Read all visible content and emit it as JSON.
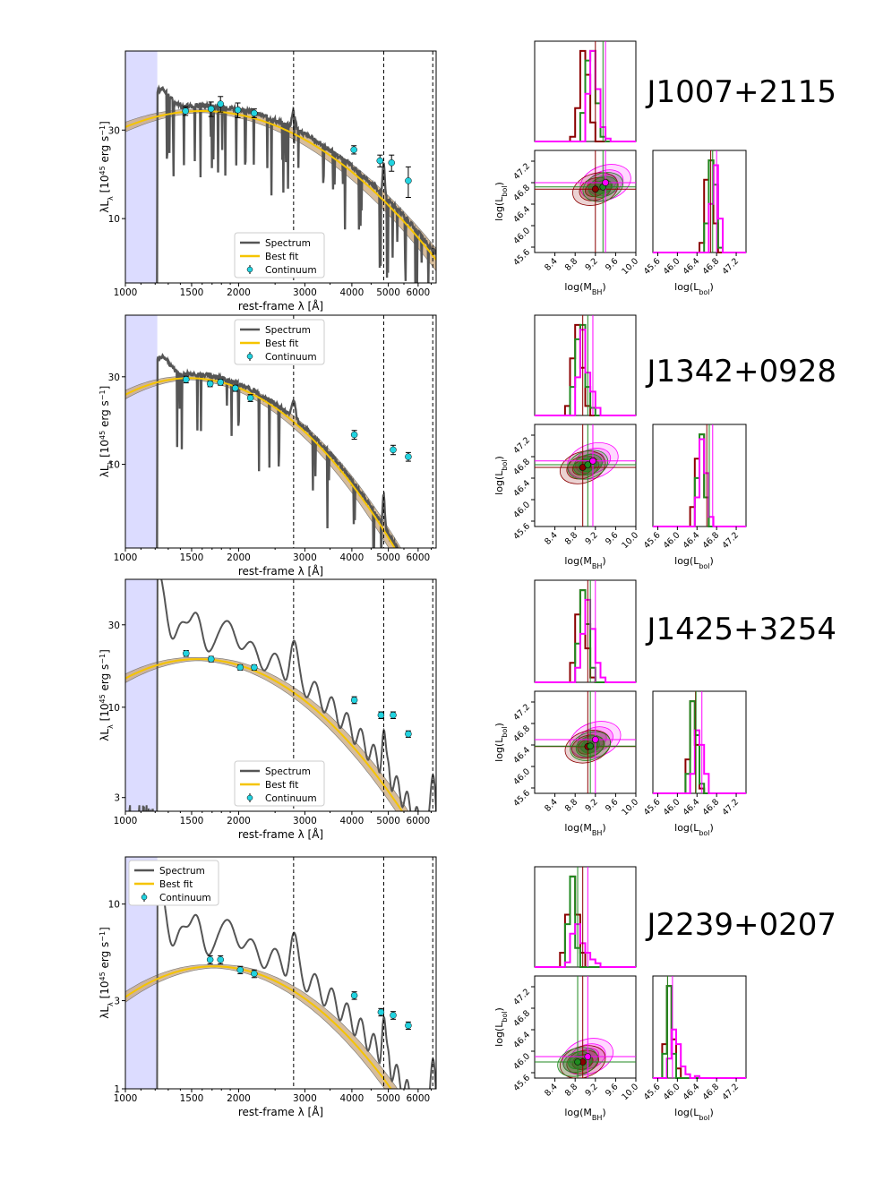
{
  "figure": {
    "x_axis_label": "rest-frame λ [Å]",
    "y_axis_label_prefix": "λL",
    "y_axis_label_sub": "λ",
    "y_axis_label_unit": " [10",
    "y_axis_label_exp": "45",
    "y_axis_label_tail": " erg s",
    "y_axis_label_tail_exp": "−1",
    "y_axis_label_close": "]",
    "x_ticks": [
      "1000",
      "1500",
      "2000",
      "3000",
      "4000",
      "5000",
      "6000"
    ],
    "corner_x_label_mbh": "log(M",
    "corner_x_label_mbh_sub": "BH",
    "corner_x_label_lbol": "log(L",
    "corner_x_label_lbol_sub": "bol",
    "corner_y_label": "log(L",
    "corner_y_label_sub": "bol",
    "mbh_ticks": [
      "8.4",
      "8.8",
      "9.2",
      "9.6",
      "10.0"
    ],
    "lbol_ticks": [
      "45.6",
      "46.0",
      "46.4",
      "46.8",
      "47.2"
    ],
    "legend": {
      "spectrum": "Spectrum",
      "best_fit": "Best fit",
      "continuum": "Continuum"
    }
  },
  "colors": {
    "spectrum": "#555555",
    "best_fit": "#f5c400",
    "band": "#c8a57a",
    "continuum": "#22d3e0",
    "lyman_shade": "#dcdcff",
    "corner_red": "#8b0000",
    "corner_green": "#1f8a1f",
    "corner_magenta": "#ff00ff"
  },
  "chart_data": [
    {
      "type": "line",
      "object": "J1007+2115",
      "xscale": "log",
      "yscale": "log",
      "xlim": [
        1000,
        6700
      ],
      "ylim": [
        4.5,
        80
      ],
      "y_ticks": [
        10,
        30
      ],
      "vlines": [
        2800,
        4861,
        6563
      ],
      "shade_x": [
        1000,
        1216
      ],
      "legend_loc": "bottom-center",
      "best_fit": {
        "peak_x": 1600,
        "peak_y": 38,
        "curvature": 0.9
      },
      "continuum": {
        "x": [
          1445,
          1690,
          1790,
          1990,
          2200,
          4050,
          4750,
          5100,
          5650
        ],
        "y": [
          38,
          39,
          41.5,
          38.5,
          37,
          23.5,
          20.5,
          20,
          16
        ],
        "err": [
          2,
          3.5,
          4,
          3.5,
          2,
          1.2,
          1.5,
          2,
          3
        ]
      },
      "spectrum_shape": {
        "level": 1.07,
        "absorption": "strong"
      }
    },
    {
      "type": "line",
      "object": "J1342+0928",
      "xscale": "log",
      "yscale": "log",
      "xlim": [
        1000,
        6700
      ],
      "ylim": [
        3.5,
        65
      ],
      "y_ticks": [
        10,
        30
      ],
      "vlines": [
        2800,
        4861,
        6563
      ],
      "shade_x": [
        1000,
        1216
      ],
      "legend_loc": "top-center",
      "best_fit": {
        "peak_x": 1480,
        "peak_y": 29.5,
        "curvature": 1.35
      },
      "continuum": {
        "x": [
          1450,
          1680,
          1790,
          1960,
          2150,
          4060,
          5150,
          5650
        ],
        "y": [
          29,
          27.5,
          28,
          26,
          23,
          14.5,
          12,
          11
        ],
        "err": [
          1.2,
          1,
          1,
          1,
          1,
          0.8,
          0.7,
          0.6
        ]
      },
      "spectrum_shape": {
        "level": 1.05,
        "absorption": "medium"
      }
    },
    {
      "type": "line",
      "object": "J1425+3254",
      "xscale": "log",
      "yscale": "log",
      "xlim": [
        1000,
        6700
      ],
      "ylim": [
        2.5,
        55
      ],
      "y_ticks": [
        3,
        10,
        30
      ],
      "vlines": [
        2800,
        4861,
        6563
      ],
      "shade_x": [
        1000,
        1216
      ],
      "legend_loc": "bottom-center",
      "best_fit": {
        "peak_x": 1560,
        "peak_y": 19,
        "curvature": 1.3
      },
      "continuum": {
        "x": [
          1450,
          1690,
          2020,
          2200,
          4060,
          4780,
          5150,
          5650
        ],
        "y": [
          20.5,
          19,
          17,
          17,
          11,
          9,
          9,
          7
        ],
        "err": [
          0.8,
          0.7,
          0.6,
          0.6,
          0.5,
          0.4,
          0.4,
          0.3
        ]
      },
      "spectrum_shape": {
        "level": 1.25,
        "absorption": "none"
      }
    },
    {
      "type": "line",
      "object": "J2239+0207",
      "xscale": "log",
      "yscale": "log",
      "xlim": [
        1000,
        6700
      ],
      "ylim": [
        1,
        18
      ],
      "y_ticks": [
        1,
        3,
        10
      ],
      "vlines": [
        2800,
        4861,
        6563
      ],
      "shade_x": [
        1000,
        1216
      ],
      "legend_loc": "top-left",
      "best_fit": {
        "peak_x": 1720,
        "peak_y": 4.6,
        "curvature": 1.3
      },
      "continuum": {
        "x": [
          1680,
          1790,
          2020,
          2200,
          4060,
          4780,
          5150,
          5650
        ],
        "y": [
          5.0,
          5.0,
          4.4,
          4.2,
          3.2,
          2.6,
          2.5,
          2.2
        ],
        "err": [
          0.25,
          0.25,
          0.2,
          0.2,
          0.15,
          0.12,
          0.12,
          0.1
        ]
      },
      "spectrum_shape": {
        "level": 1.3,
        "absorption": "none"
      }
    }
  ],
  "corner_data": [
    {
      "object": "J1007+2115",
      "mbh_lim": [
        8.0,
        10.0
      ],
      "lbol_lim": [
        45.5,
        47.4
      ],
      "red": {
        "mbh": 9.2,
        "lbol": 46.68,
        "mbh_hist": [
          0,
          0,
          0,
          0,
          0,
          0,
          0,
          0.05,
          0.35,
          0.95,
          0.7,
          0.2,
          0,
          0,
          0,
          0,
          0,
          0,
          0,
          0
        ],
        "lbol_hist": [
          0,
          0,
          0,
          0,
          0,
          0,
          0,
          0,
          0,
          0,
          0.1,
          0.75,
          0.95,
          0.3,
          0,
          0,
          0,
          0,
          0,
          0
        ]
      },
      "green": {
        "mbh": 9.35,
        "lbol": 46.72,
        "mbh_hist": [
          0,
          0,
          0,
          0,
          0,
          0,
          0,
          0,
          0,
          0.3,
          0.85,
          0.95,
          0.4,
          0.05,
          0,
          0,
          0,
          0,
          0,
          0
        ],
        "lbol_hist": [
          0,
          0,
          0,
          0,
          0,
          0,
          0,
          0,
          0,
          0,
          0,
          0.3,
          0.95,
          0.7,
          0.05,
          0,
          0,
          0,
          0,
          0
        ]
      },
      "magenta": {
        "mbh": 9.4,
        "lbol": 46.8,
        "mbh_hist": [
          0,
          0,
          0,
          0,
          0,
          0,
          0,
          0,
          0,
          0,
          0.5,
          0.95,
          0.55,
          0.15,
          0.03,
          0,
          0,
          0,
          0,
          0
        ],
        "lbol_hist": [
          0,
          0,
          0,
          0,
          0,
          0,
          0,
          0,
          0,
          0,
          0,
          0,
          0.5,
          0.9,
          0.35,
          0,
          0,
          0,
          0,
          0
        ]
      }
    },
    {
      "object": "J1342+0928",
      "mbh_lim": [
        8.0,
        10.0
      ],
      "lbol_lim": [
        45.5,
        47.4
      ],
      "red": {
        "mbh": 8.95,
        "lbol": 46.6,
        "mbh_hist": [
          0,
          0,
          0,
          0,
          0,
          0,
          0.1,
          0.6,
          0.95,
          0.5,
          0.1,
          0,
          0,
          0,
          0,
          0,
          0,
          0,
          0,
          0
        ],
        "lbol_hist": [
          0,
          0,
          0,
          0,
          0,
          0,
          0,
          0,
          0.2,
          0.7,
          0.95,
          0.3,
          0,
          0,
          0,
          0,
          0,
          0,
          0,
          0
        ]
      },
      "green": {
        "mbh": 9.05,
        "lbol": 46.65,
        "mbh_hist": [
          0,
          0,
          0,
          0,
          0,
          0,
          0,
          0.3,
          0.8,
          0.95,
          0.3,
          0.08,
          0,
          0,
          0,
          0,
          0,
          0,
          0,
          0
        ],
        "lbol_hist": [
          0,
          0,
          0,
          0,
          0,
          0,
          0,
          0,
          0,
          0.5,
          0.95,
          0.3,
          0,
          0,
          0,
          0,
          0,
          0,
          0,
          0
        ]
      },
      "magenta": {
        "mbh": 9.15,
        "lbol": 46.72,
        "mbh_hist": [
          0,
          0,
          0,
          0,
          0,
          0,
          0,
          0,
          0.4,
          0.9,
          0.45,
          0.25,
          0.08,
          0,
          0,
          0,
          0,
          0,
          0,
          0
        ],
        "lbol_hist": [
          0,
          0,
          0,
          0,
          0,
          0,
          0,
          0,
          0,
          0.3,
          0.9,
          0.55,
          0.1,
          0,
          0,
          0,
          0,
          0,
          0,
          0
        ]
      }
    },
    {
      "object": "J1425+3254",
      "mbh_lim": [
        8.0,
        10.0
      ],
      "lbol_lim": [
        45.5,
        47.4
      ],
      "red": {
        "mbh": 9.05,
        "lbol": 46.37,
        "mbh_hist": [
          0,
          0,
          0,
          0,
          0,
          0,
          0,
          0.2,
          0.7,
          0.95,
          0.35,
          0.05,
          0,
          0,
          0,
          0,
          0,
          0,
          0,
          0
        ],
        "lbol_hist": [
          0,
          0,
          0,
          0,
          0,
          0,
          0,
          0.35,
          0.95,
          0.5,
          0.05,
          0,
          0,
          0,
          0,
          0,
          0,
          0,
          0,
          0
        ]
      },
      "green": {
        "mbh": 9.1,
        "lbol": 46.38,
        "mbh_hist": [
          0,
          0,
          0,
          0,
          0,
          0,
          0,
          0,
          0.4,
          0.95,
          0.6,
          0.15,
          0,
          0,
          0,
          0,
          0,
          0,
          0,
          0
        ],
        "lbol_hist": [
          0,
          0,
          0,
          0,
          0,
          0,
          0,
          0.2,
          0.95,
          0.6,
          0.1,
          0,
          0,
          0,
          0,
          0,
          0,
          0,
          0,
          0
        ]
      },
      "magenta": {
        "mbh": 9.2,
        "lbol": 46.5,
        "mbh_hist": [
          0,
          0,
          0,
          0,
          0,
          0,
          0,
          0,
          0.15,
          0.5,
          0.85,
          0.55,
          0.2,
          0.05,
          0,
          0,
          0,
          0,
          0,
          0
        ],
        "lbol_hist": [
          0,
          0,
          0,
          0,
          0,
          0,
          0,
          0,
          0.2,
          0.65,
          0.5,
          0.2,
          0,
          0,
          0,
          0,
          0,
          0,
          0,
          0
        ]
      }
    },
    {
      "object": "J2239+0207",
      "mbh_lim": [
        8.0,
        10.0
      ],
      "lbol_lim": [
        45.5,
        47.4
      ],
      "red": {
        "mbh": 8.95,
        "lbol": 45.8,
        "mbh_hist": [
          0,
          0,
          0,
          0,
          0,
          0.15,
          0.55,
          0.95,
          0.55,
          0.15,
          0,
          0,
          0,
          0,
          0,
          0,
          0,
          0,
          0,
          0
        ],
        "lbol_hist": [
          0,
          0,
          0.35,
          0.95,
          0.4,
          0.1,
          0,
          0,
          0,
          0,
          0,
          0,
          0,
          0,
          0,
          0,
          0,
          0,
          0,
          0
        ]
      },
      "green": {
        "mbh": 8.85,
        "lbol": 45.8,
        "mbh_hist": [
          0,
          0,
          0,
          0,
          0,
          0,
          0.45,
          0.95,
          0.2,
          0,
          0,
          0,
          0,
          0,
          0,
          0,
          0,
          0,
          0,
          0
        ],
        "lbol_hist": [
          0,
          0,
          0.25,
          0.95,
          0.25,
          0,
          0,
          0,
          0,
          0,
          0,
          0,
          0,
          0,
          0,
          0,
          0,
          0,
          0,
          0
        ]
      },
      "magenta": {
        "mbh": 9.05,
        "lbol": 45.9,
        "mbh_hist": [
          0,
          0,
          0,
          0,
          0,
          0,
          0.05,
          0.35,
          0.45,
          0.25,
          0.15,
          0.08,
          0.04,
          0,
          0,
          0,
          0,
          0,
          0,
          0
        ],
        "lbol_hist": [
          0,
          0,
          0,
          0.2,
          0.5,
          0.35,
          0.12,
          0.04,
          0,
          0.02,
          0,
          0,
          0,
          0,
          0,
          0,
          0,
          0,
          0,
          0
        ]
      }
    }
  ]
}
